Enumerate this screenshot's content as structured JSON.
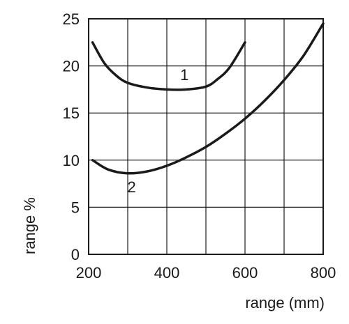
{
  "chart_data": {
    "type": "line",
    "title": "",
    "xlabel": "range (mm)",
    "ylabel": "range %",
    "xlim": [
      200,
      800
    ],
    "ylim": [
      0,
      25
    ],
    "xticks": [
      200,
      400,
      600,
      800
    ],
    "xtick_labels": [
      "200",
      "400",
      "600",
      "800"
    ],
    "yticks": [
      0,
      5,
      10,
      15,
      20,
      25
    ],
    "ytick_labels": [
      "0",
      "5",
      "10",
      "15",
      "20",
      "25"
    ],
    "grid": true,
    "legend": "none",
    "series": [
      {
        "label": "1",
        "x": [
          210,
          240,
          270,
          300,
          350,
          400,
          450,
          500,
          530,
          560,
          600
        ],
        "y": [
          22.5,
          20.3,
          19.0,
          18.2,
          17.7,
          17.5,
          17.5,
          17.8,
          18.6,
          19.8,
          22.5
        ]
      },
      {
        "label": "2",
        "x": [
          210,
          250,
          300,
          350,
          400,
          450,
          500,
          550,
          600,
          650,
          700,
          750,
          800
        ],
        "y": [
          10.0,
          9.0,
          8.6,
          8.8,
          9.4,
          10.3,
          11.4,
          12.8,
          14.4,
          16.3,
          18.5,
          21.1,
          24.5
        ]
      }
    ],
    "series_label_positions": [
      {
        "label": "1",
        "x": 445,
        "y": 18.5
      },
      {
        "label": "2",
        "x": 310,
        "y": 6.6
      }
    ]
  }
}
